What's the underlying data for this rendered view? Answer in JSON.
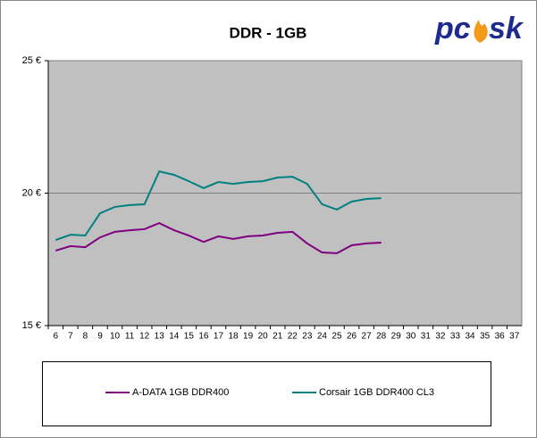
{
  "chart_data": {
    "type": "line",
    "title": "DDR - 1GB",
    "logo_left": "pc",
    "logo_right": "sk",
    "categories": [
      "6",
      "7",
      "8",
      "9",
      "10",
      "11",
      "12",
      "13",
      "14",
      "15",
      "16",
      "17",
      "18",
      "19",
      "20",
      "21",
      "22",
      "23",
      "24",
      "25",
      "26",
      "27",
      "28",
      "29",
      "30",
      "31",
      "32",
      "33",
      "34",
      "35",
      "36",
      "37"
    ],
    "series": [
      {
        "name": "A-DATA 1GB DDR400",
        "color": "#800080",
        "values": [
          17.83,
          18.0,
          17.96,
          18.33,
          18.54,
          18.6,
          18.64,
          18.87,
          18.6,
          18.4,
          18.16,
          18.37,
          18.27,
          18.37,
          18.4,
          18.5,
          18.54,
          18.1,
          17.76,
          17.73,
          18.03,
          18.1,
          18.13,
          null,
          null,
          null,
          null,
          null,
          null,
          null,
          null,
          null
        ]
      },
      {
        "name": "Corsair 1GB DDR400 CL3",
        "color": "#008080",
        "values": [
          18.23,
          18.43,
          18.4,
          19.24,
          19.48,
          19.55,
          19.58,
          20.82,
          20.69,
          20.45,
          20.19,
          20.42,
          20.35,
          20.42,
          20.45,
          20.59,
          20.62,
          20.35,
          19.58,
          19.38,
          19.68,
          19.78,
          19.81,
          null,
          null,
          null,
          null,
          null,
          null,
          null,
          null,
          null
        ]
      }
    ],
    "ylim": [
      15,
      25
    ],
    "yticks": [
      {
        "value": 15,
        "label": "15 €"
      },
      {
        "value": 20,
        "label": "20 €"
      },
      {
        "value": 25,
        "label": "25 €"
      }
    ],
    "grid": true,
    "plot_background": "#c0c0c0"
  }
}
